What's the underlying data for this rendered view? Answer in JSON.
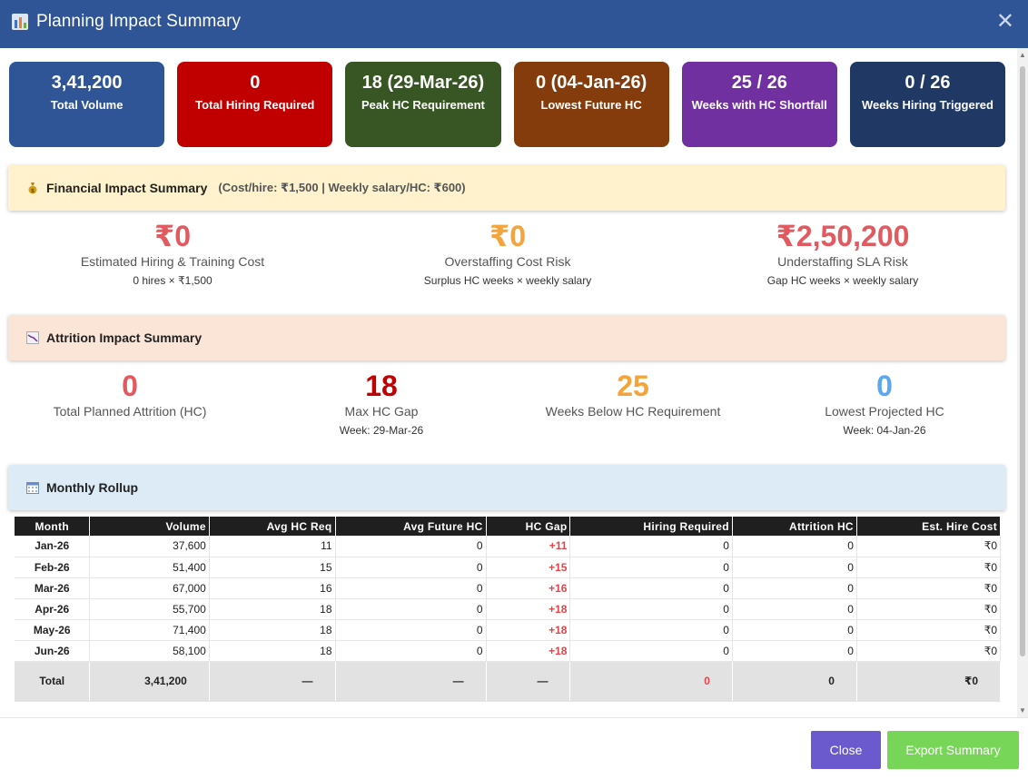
{
  "window": {
    "title": "Planning Impact Summary",
    "close_glyph": "✕",
    "icon": "chart-icon"
  },
  "kpis": [
    {
      "value": "3,41,200",
      "label": "Total Volume",
      "color": "#2f5597"
    },
    {
      "value": "0",
      "label": "Total Hiring Required",
      "color": "#c00000"
    },
    {
      "value": "18 (29-Mar-26)",
      "label": "Peak HC Requirement",
      "color": "#375623"
    },
    {
      "value": "0 (04-Jan-26)",
      "label": "Lowest Future HC",
      "color": "#843c0c"
    },
    {
      "value": "25 / 26",
      "label": "Weeks with HC Shortfall",
      "color": "#7030a0"
    },
    {
      "value": "0 / 26",
      "label": "Weeks Hiring Triggered",
      "color": "#1f3864"
    }
  ],
  "financial": {
    "title": "Financial Impact Summary",
    "subtitle": "(Cost/hire: ₹1,500 | Weekly salary/HC: ₹600)",
    "icon": "money-bag-icon",
    "bg": "#fff2cc",
    "items": [
      {
        "value": "₹0",
        "label": "Estimated Hiring & Training Cost",
        "note": "0 hires × ₹1,500",
        "color": "#e05a5f"
      },
      {
        "value": "₹0",
        "label": "Overstaffing Cost Risk",
        "note": "Surplus HC weeks × weekly salary",
        "color": "#f4a43a"
      },
      {
        "value": "₹2,50,200",
        "label": "Understaffing SLA Risk",
        "note": "Gap HC weeks × weekly salary",
        "color": "#e05a5f"
      }
    ]
  },
  "attrition": {
    "title": "Attrition Impact Summary",
    "icon": "chart-decreasing-icon",
    "bg": "#fbe5d6",
    "items": [
      {
        "value": "0",
        "label": "Total Planned Attrition (HC)",
        "note": "",
        "color": "#e05a5f"
      },
      {
        "value": "18",
        "label": "Max HC Gap",
        "note": "Week: 29-Mar-26",
        "color": "#c00000"
      },
      {
        "value": "25",
        "label": "Weeks Below HC Requirement",
        "note": "",
        "color": "#f4a43a"
      },
      {
        "value": "0",
        "label": "Lowest Projected HC",
        "note": "Week: 04-Jan-26",
        "color": "#5ba8f0"
      }
    ]
  },
  "monthly": {
    "title": "Monthly Rollup",
    "icon": "calendar-icon",
    "bg": "#ddebf7",
    "columns": [
      "Month",
      "Volume",
      "Avg HC Req",
      "Avg Future HC",
      "HC Gap",
      "Hiring Required",
      "Attrition HC",
      "Est. Hire Cost"
    ],
    "rows": [
      [
        "Jan-26",
        "37,600",
        "11",
        "0",
        "+11",
        "0",
        "0",
        "₹0"
      ],
      [
        "Feb-26",
        "51,400",
        "15",
        "0",
        "+15",
        "0",
        "0",
        "₹0"
      ],
      [
        "Mar-26",
        "67,000",
        "16",
        "0",
        "+16",
        "0",
        "0",
        "₹0"
      ],
      [
        "Apr-26",
        "55,700",
        "18",
        "0",
        "+18",
        "0",
        "0",
        "₹0"
      ],
      [
        "May-26",
        "71,400",
        "18",
        "0",
        "+18",
        "0",
        "0",
        "₹0"
      ],
      [
        "Jun-26",
        "58,100",
        "18",
        "0",
        "+18",
        "0",
        "0",
        "₹0"
      ]
    ],
    "total": [
      "Total",
      "3,41,200",
      "—",
      "—",
      "—",
      "0",
      "0",
      "₹0"
    ]
  },
  "footer": {
    "close_label": "Close",
    "close_color": "#6a5acd",
    "export_label": "Export Summary",
    "export_color": "#77d658"
  }
}
